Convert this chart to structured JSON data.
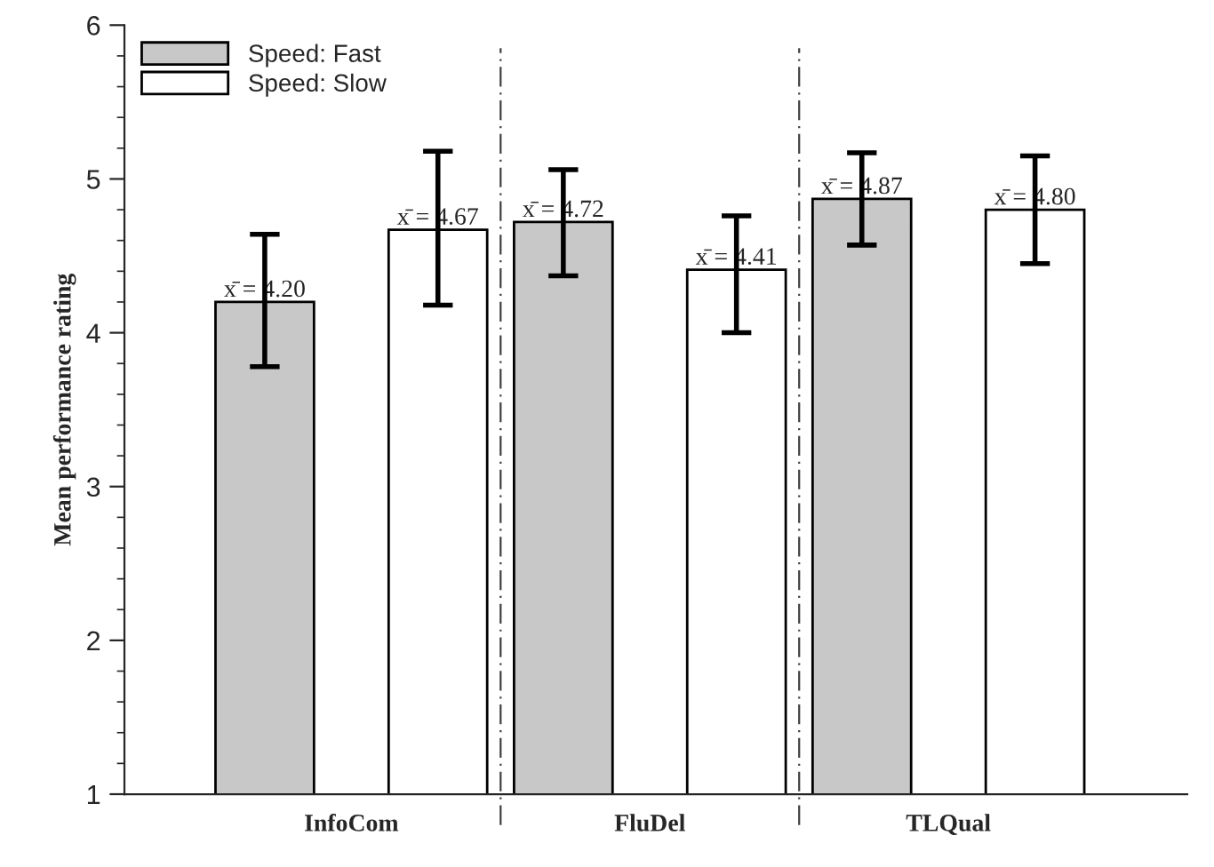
{
  "chart_data": {
    "type": "bar",
    "categories": [
      "InfoCom",
      "FluDel",
      "TLQual"
    ],
    "ylabel": "Mean performance rating",
    "ylim": [
      1,
      6
    ],
    "yticks": [
      1,
      {
        "value": 1.2,
        "label": null
      },
      {
        "value": 1.4,
        "label": null
      },
      {
        "value": 1.6,
        "label": null
      },
      {
        "value": 1.8,
        "label": null
      },
      2,
      {
        "value": 2.2,
        "label": null
      },
      {
        "value": 2.4,
        "label": null
      },
      {
        "value": 2.6,
        "label": null
      },
      {
        "value": 2.8,
        "label": null
      },
      3,
      {
        "value": 3.2,
        "label": null
      },
      {
        "value": 3.4,
        "label": null
      },
      {
        "value": 3.6,
        "label": null
      },
      {
        "value": 3.8,
        "label": null
      },
      4,
      {
        "value": 4.2,
        "label": null
      },
      {
        "value": 4.4,
        "label": null
      },
      {
        "value": 4.6,
        "label": null
      },
      {
        "value": 4.8,
        "label": null
      },
      5,
      {
        "value": 5.2,
        "label": null
      },
      {
        "value": 5.4,
        "label": null
      },
      {
        "value": 5.6,
        "label": null
      },
      {
        "value": 5.8,
        "label": null
      },
      6
    ],
    "series": [
      {
        "name": "Speed: Fast",
        "color": "#c8c8c8",
        "values": [
          4.2,
          4.72,
          4.87
        ],
        "errors": [
          [
            3.78,
            4.64
          ],
          [
            4.37,
            5.06
          ],
          [
            4.57,
            5.17
          ]
        ],
        "value_labels": [
          "x̄ = 4.20",
          "x̄ = 4.72",
          "x̄ = 4.87"
        ]
      },
      {
        "name": "Speed: Slow",
        "color": "#ffffff",
        "values": [
          4.67,
          4.41,
          4.8
        ],
        "errors": [
          [
            4.18,
            5.18
          ],
          [
            4.0,
            4.76
          ],
          [
            4.45,
            5.15
          ]
        ],
        "value_labels": [
          "x̄ = 4.67",
          "x̄ = 4.41",
          "x̄ = 4.80"
        ]
      }
    ],
    "legend": "top left",
    "grid": false
  }
}
